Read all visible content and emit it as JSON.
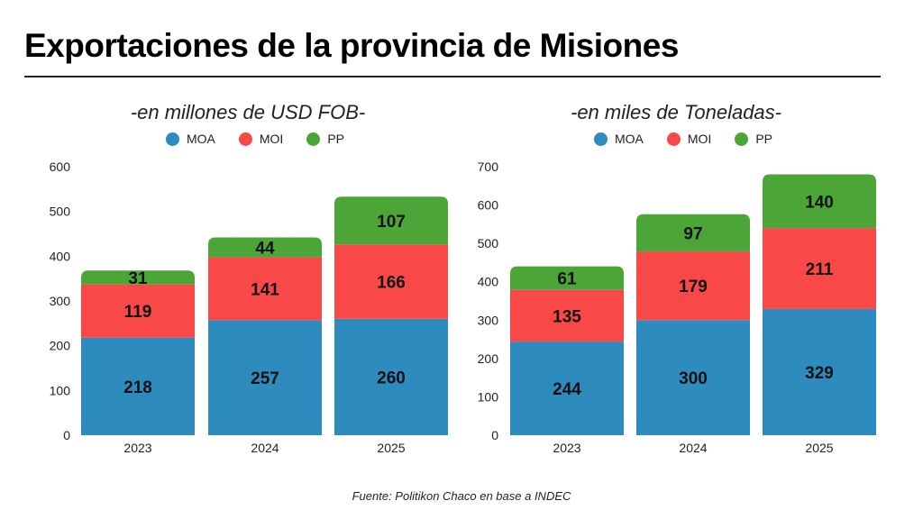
{
  "header": {
    "title": "Exportaciones de la provincia de Misiones"
  },
  "footer": {
    "source": "Fuente: Politikon Chaco en base a INDEC"
  },
  "colors": {
    "MOA": "#2e8bbd",
    "MOI": "#f84848",
    "PP": "#4ca637"
  },
  "chart_data": [
    {
      "type": "bar",
      "stacked": true,
      "title": "-en millones de USD FOB-",
      "xlabel": "",
      "ylabel": "",
      "categories": [
        "2023",
        "2024",
        "2025"
      ],
      "series": [
        {
          "name": "MOA",
          "values": [
            218,
            257,
            260
          ]
        },
        {
          "name": "MOI",
          "values": [
            119,
            141,
            166
          ]
        },
        {
          "name": "PP",
          "values": [
            31,
            44,
            107
          ]
        }
      ],
      "ylim": [
        0,
        600
      ],
      "yticks": [
        0,
        100,
        200,
        300,
        400,
        500,
        600
      ],
      "grid": false,
      "legend": "top-center"
    },
    {
      "type": "bar",
      "stacked": true,
      "title": "-en miles de Toneladas-",
      "xlabel": "",
      "ylabel": "",
      "categories": [
        "2023",
        "2024",
        "2025"
      ],
      "series": [
        {
          "name": "MOA",
          "values": [
            244,
            300,
            329
          ]
        },
        {
          "name": "MOI",
          "values": [
            135,
            179,
            211
          ]
        },
        {
          "name": "PP",
          "values": [
            61,
            97,
            140
          ]
        }
      ],
      "ylim": [
        0,
        700
      ],
      "yticks": [
        0,
        100,
        200,
        300,
        400,
        500,
        600,
        700
      ],
      "grid": false,
      "legend": "top-center"
    }
  ]
}
